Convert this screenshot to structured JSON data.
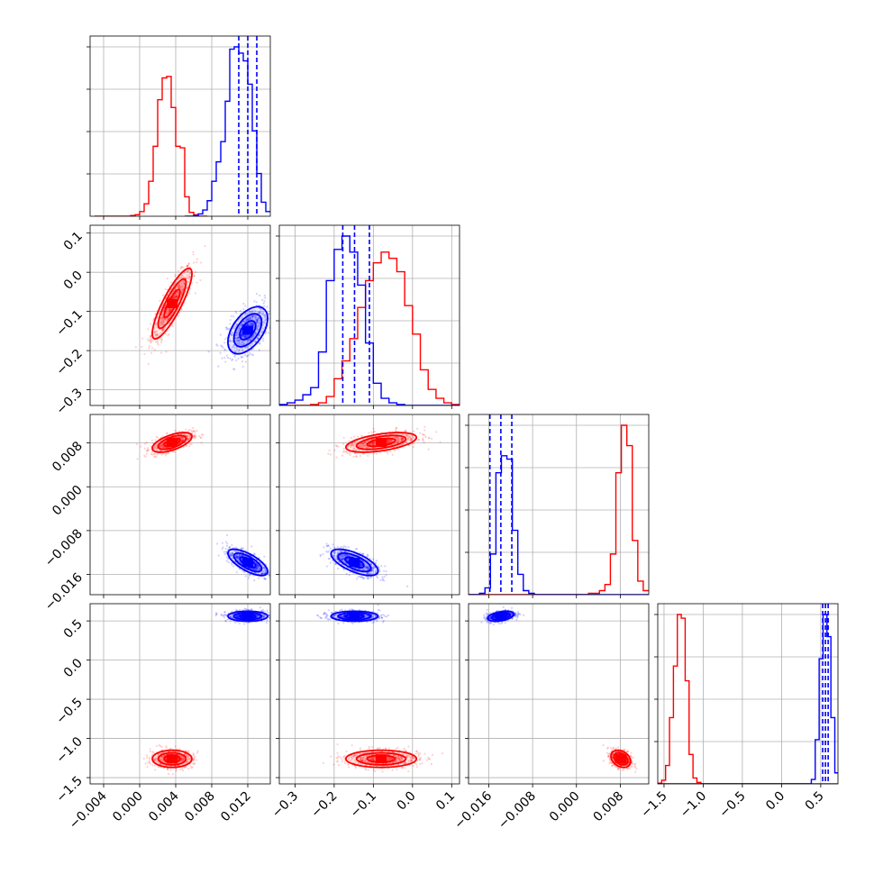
{
  "chart_data": {
    "type": "corner",
    "grid": true,
    "parameters": [
      {
        "id": "p1",
        "range": [
          -0.0055,
          0.0145
        ],
        "ticks": [
          -0.004,
          0.0,
          0.004,
          0.008,
          0.012
        ],
        "tick_labels": [
          "−0.004",
          "0.000",
          "0.004",
          "0.008",
          "0.012"
        ]
      },
      {
        "id": "p2",
        "range": [
          -0.34,
          0.12
        ],
        "ticks": [
          -0.3,
          -0.2,
          -0.1,
          0.0,
          0.1
        ],
        "tick_labels": [
          "−0.3",
          "−0.2",
          "−0.1",
          "0.0",
          "0.1"
        ]
      },
      {
        "id": "p3",
        "range": [
          -0.0197,
          0.0132
        ],
        "ticks": [
          -0.016,
          -0.008,
          0.0,
          0.008
        ],
        "tick_labels": [
          "−0.016",
          "−0.008",
          "0.000",
          "0.008"
        ]
      },
      {
        "id": "p4",
        "range": [
          -1.58,
          0.72
        ],
        "ticks": [
          -1.5,
          -1.0,
          -0.5,
          0.0,
          0.5
        ],
        "tick_labels": [
          "−1.5",
          "−1.0",
          "−0.5",
          "0.0",
          "0.5"
        ]
      }
    ],
    "series": [
      {
        "color": "#ff0000",
        "mean": [
          0.0036,
          -0.08,
          0.0081,
          -1.26
        ],
        "std": [
          0.0011,
          0.045,
          0.0009,
          0.055
        ],
        "correlation": {
          "0-1": 0.85,
          "0-2": 0.6,
          "1-2": 0.5,
          "0-3": 0.0,
          "1-3": 0.0,
          "2-3": -0.3
        },
        "quantile_lines": false
      },
      {
        "color": "#0000ff",
        "mean": [
          0.012,
          -0.148,
          -0.0138,
          0.56
        ],
        "std": [
          0.0011,
          0.03,
          0.0012,
          0.032
        ],
        "correlation": {
          "0-1": 0.5,
          "0-2": -0.7,
          "1-2": -0.65,
          "0-3": 0.0,
          "1-3": 0.0,
          "2-3": 0.4
        },
        "quantile_lines": true
      }
    ],
    "diagonal_histograms": [
      {
        "parameter": "p1",
        "series": [
          {
            "color": "#ff0000",
            "bins": [
              -0.005,
              -0.0045,
              -0.004,
              -0.0035,
              -0.003,
              -0.0025,
              -0.002,
              -0.0015,
              -0.001,
              -0.0005,
              0.0,
              0.0005,
              0.001,
              0.0015,
              0.002,
              0.0025,
              0.003,
              0.0035,
              0.004,
              0.0045,
              0.005,
              0.0055,
              0.006,
              0.0065,
              0.007,
              0.0075
            ],
            "counts": [
              0,
              0,
              0,
              0,
              0,
              0,
              0,
              0,
              1,
              2,
              6,
              16,
              45,
              90,
              150,
              178,
              180,
              140,
              90,
              88,
              25,
              5,
              2,
              0,
              0
            ]
          },
          {
            "color": "#0000ff",
            "bins": [
              0.005,
              0.0055,
              0.006,
              0.0065,
              0.007,
              0.0075,
              0.008,
              0.0085,
              0.009,
              0.0095,
              0.01,
              0.0105,
              0.011,
              0.0115,
              0.012,
              0.0125,
              0.013,
              0.0135,
              0.014,
              0.0145
            ],
            "counts": [
              0,
              0,
              1,
              3,
              8,
              20,
              45,
              70,
              96,
              148,
              215,
              218,
              210,
              200,
              170,
              110,
              55,
              18,
              6
            ]
          }
        ],
        "quantiles": [
          0.011,
          0.012,
          0.013
        ]
      },
      {
        "parameter": "p2",
        "series": [
          {
            "color": "#ff0000",
            "bins": [
              -0.34,
              -0.32,
              -0.3,
              -0.28,
              -0.26,
              -0.24,
              -0.22,
              -0.2,
              -0.18,
              -0.16,
              -0.14,
              -0.12,
              -0.1,
              -0.08,
              -0.06,
              -0.04,
              -0.02,
              0.0,
              0.02,
              0.04,
              0.06,
              0.08,
              0.1,
              0.12
            ],
            "counts": [
              0,
              0,
              0,
              0,
              1,
              3,
              10,
              30,
              50,
              75,
              110,
              140,
              160,
              172,
              165,
              150,
              112,
              80,
              40,
              18,
              8,
              3,
              1
            ]
          },
          {
            "color": "#0000ff",
            "bins": [
              -0.34,
              -0.32,
              -0.3,
              -0.28,
              -0.26,
              -0.24,
              -0.22,
              -0.2,
              -0.18,
              -0.16,
              -0.14,
              -0.12,
              -0.1,
              -0.08,
              -0.06,
              -0.04,
              -0.02,
              0.0,
              0.02,
              0.04,
              0.06,
              0.08,
              0.1,
              0.12
            ],
            "counts": [
              1,
              3,
              6,
              12,
              20,
              60,
              140,
              175,
              190,
              172,
              135,
              70,
              25,
              8,
              3,
              1,
              0,
              0,
              0,
              0,
              0,
              0,
              0
            ]
          }
        ],
        "quantiles": [
          -0.178,
          -0.148,
          -0.11
        ]
      },
      {
        "parameter": "p3",
        "series": [
          {
            "color": "#ff0000",
            "bins": [
              -0.0197,
              0.0022,
              0.0042,
              0.0052,
              0.0062,
              0.0072,
              0.0082,
              0.0092,
              0.0102,
              0.0112,
              0.0122,
              0.0132
            ],
            "counts": [
              0,
              2,
              6,
              15,
              60,
              180,
              250,
              220,
              80,
              20,
              6
            ]
          },
          {
            "color": "#0000ff",
            "bins": [
              -0.0197,
              -0.0177,
              -0.0167,
              -0.0157,
              -0.0147,
              -0.0137,
              -0.0127,
              -0.0117,
              -0.0107,
              -0.0097,
              -0.0087,
              -0.0077,
              0.0132
            ],
            "counts": [
              0,
              2,
              10,
              60,
              180,
              205,
              200,
              95,
              30,
              6,
              2,
              0
            ]
          }
        ],
        "quantiles": [
          -0.0158,
          -0.0138,
          -0.0118
        ]
      },
      {
        "parameter": "p4",
        "series": [
          {
            "color": "#ff0000",
            "bins": [
              -1.58,
              -1.53,
              -1.48,
              -1.43,
              -1.38,
              -1.33,
              -1.28,
              -1.23,
              -1.18,
              -1.13,
              -1.08,
              -1.03,
              0.72
            ],
            "counts": [
              1,
              5,
              25,
              90,
              160,
              230,
              225,
              140,
              40,
              8,
              2,
              0
            ]
          },
          {
            "color": "#0000ff",
            "bins": [
              -1.58,
              0.38,
              0.43,
              0.48,
              0.53,
              0.58,
              0.63,
              0.68,
              0.72
            ],
            "counts": [
              0,
              6,
              60,
              170,
              230,
              200,
              90,
              15
            ]
          }
        ],
        "quantiles": [
          0.525,
          0.56,
          0.595
        ]
      }
    ]
  }
}
